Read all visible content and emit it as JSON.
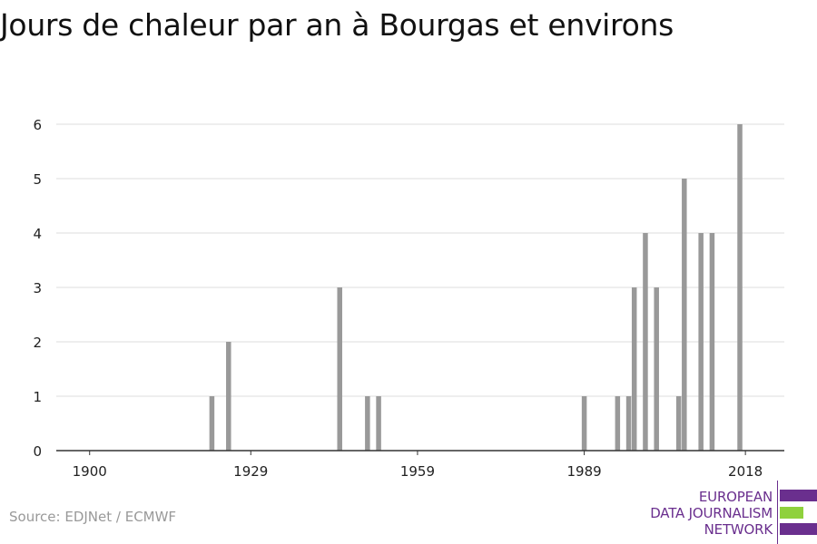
{
  "title": "Jours de chaleur par an à Bourgas et environs",
  "source": "Source: EDJNet / ECMWF",
  "logo": {
    "line1": "EUROPEAN",
    "line2": "DATA JOURNALISM",
    "line3": "NETWORK",
    "colors": {
      "primary": "#6a2f8e",
      "accent": "#8fd13d"
    }
  },
  "chart_data": {
    "type": "bar",
    "title": "Jours de chaleur par an à Bourgas et environs",
    "xlabel": "",
    "ylabel": "",
    "xlim": [
      1894,
      2025
    ],
    "ylim": [
      0,
      6
    ],
    "x_ticks": [
      1900,
      1929,
      1959,
      1989,
      2018
    ],
    "y_ticks": [
      0,
      1,
      2,
      3,
      4,
      5,
      6
    ],
    "grid": true,
    "bar_color": "#999999",
    "series": [
      {
        "x": [
          1922,
          1925,
          1945,
          1950,
          1952,
          1989,
          1995,
          1997,
          1998,
          2000,
          2002,
          2006,
          2007,
          2010,
          2012,
          2017
        ],
        "values": [
          1,
          2,
          3,
          1,
          1,
          1,
          1,
          1,
          3,
          4,
          3,
          1,
          5,
          4,
          4,
          6
        ]
      }
    ]
  }
}
